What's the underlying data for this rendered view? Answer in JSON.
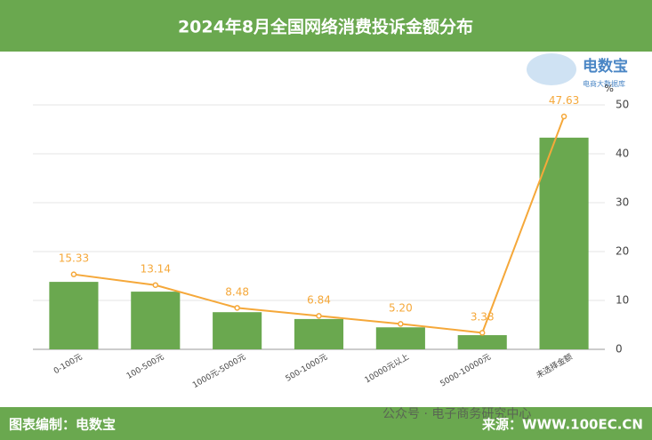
{
  "header": {
    "title": "2024年8月全国网络消费投诉金额分布"
  },
  "logo": {
    "name": "电数宝",
    "tagline": "电商大数据库"
  },
  "footer": {
    "left": "图表编制：电数宝",
    "watermark": "公众号 · 电子商务研究中心",
    "right": "来源：WWW.100EC.CN"
  },
  "chart_data": {
    "type": "bar-line",
    "unit_label": "%",
    "categories": [
      "0-100元",
      "100-500元",
      "1000元-5000元",
      "500-1000元",
      "10000元以上",
      "5000-10000元",
      "未选择金额"
    ],
    "series": [
      {
        "type": "bar",
        "color": "#6aa84f",
        "values": [
          13.8,
          11.8,
          7.6,
          6.2,
          4.5,
          2.9,
          43.3
        ]
      },
      {
        "type": "line",
        "color": "#f5a83a",
        "values": [
          15.33,
          13.14,
          8.48,
          6.84,
          5.2,
          3.38,
          47.63
        ],
        "value_labels": [
          "15.33",
          "13.14",
          "8.48",
          "6.84",
          "5.20",
          "3.38",
          "47.63"
        ]
      }
    ],
    "ylim": [
      0,
      50
    ],
    "yticks": [
      0,
      10,
      20,
      30,
      40,
      50
    ],
    "grid": true,
    "y_axis_side": "right"
  }
}
